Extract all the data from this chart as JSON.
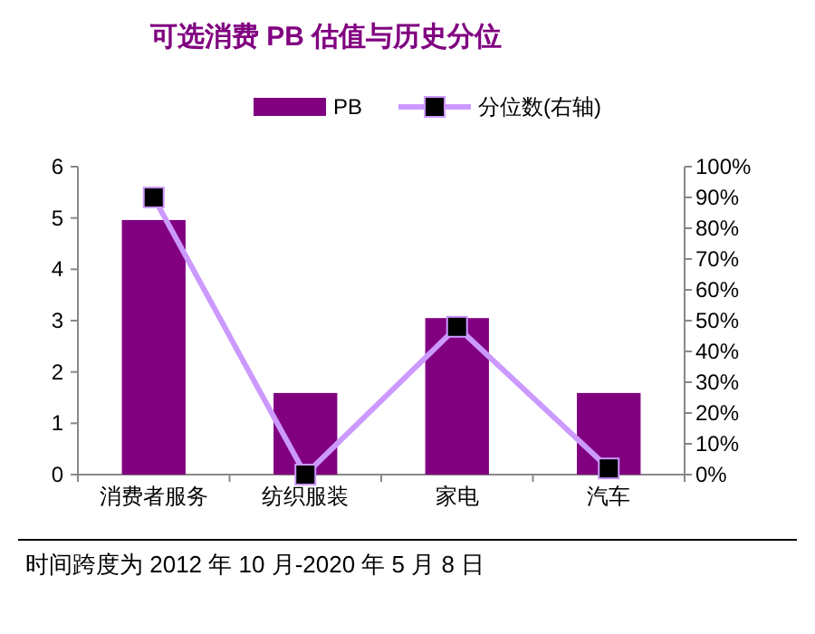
{
  "chart_data": {
    "type": "bar",
    "title": "可选消费 PB 估值与历史分位",
    "categories": [
      "消费者服务",
      "纺织服装",
      "家电",
      "汽车"
    ],
    "series": [
      {
        "name": "PB",
        "color": "#800080",
        "values": [
          4.96,
          1.59,
          3.05,
          1.59
        ]
      },
      {
        "name": "分位数(右轴)",
        "type": "line",
        "axis": "y2",
        "color": "#cc99ff",
        "marker": "square",
        "values": [
          90,
          0,
          48,
          2
        ]
      }
    ],
    "ylim": [
      0,
      6
    ],
    "yticks": [
      0,
      1,
      2,
      3,
      4,
      5,
      6
    ],
    "y2lim": [
      0,
      100
    ],
    "y2ticks": [
      {
        "value": 0,
        "label": "0%"
      },
      {
        "value": 10,
        "label": "10%"
      },
      {
        "value": 20,
        "label": "20%"
      },
      {
        "value": 30,
        "label": "30%"
      },
      {
        "value": 40,
        "label": "40%"
      },
      {
        "value": 50,
        "label": "50%"
      },
      {
        "value": 60,
        "label": "60%"
      },
      {
        "value": 70,
        "label": "70%"
      },
      {
        "value": 80,
        "label": "80%"
      },
      {
        "value": 90,
        "label": "90%"
      },
      {
        "value": 100,
        "label": "100%"
      }
    ],
    "legend": "top",
    "grid": false,
    "annotations": [
      "时间跨度为 2012 年 10 月-2020 年 5 月 8 日"
    ]
  }
}
